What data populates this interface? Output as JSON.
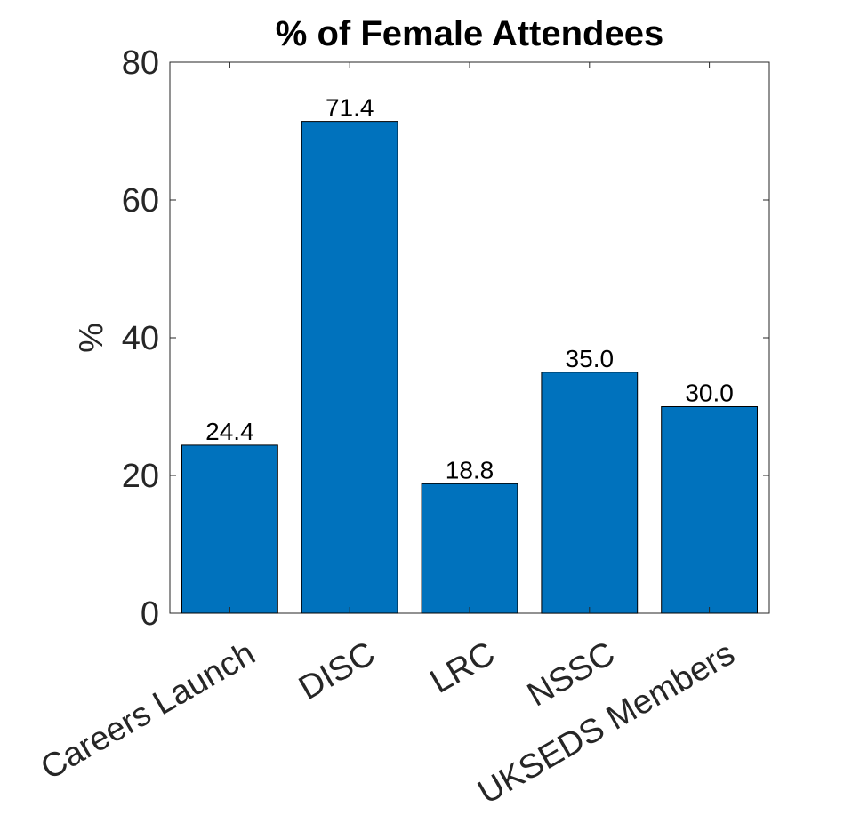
{
  "chart_data": {
    "type": "bar",
    "title": "% of Female Attendees",
    "xlabel": "",
    "ylabel": "%",
    "categories": [
      "Careers Launch",
      "DISC",
      "LRC",
      "NSSC",
      "UKSEDS Members"
    ],
    "values": [
      24.4,
      71.4,
      18.8,
      35.0,
      30.0
    ],
    "data_labels": [
      "24.4",
      "71.4",
      "18.8",
      "35.0",
      "30.0"
    ],
    "ylim": [
      0,
      80
    ],
    "yticks": [
      0,
      20,
      40,
      60,
      80
    ],
    "ytick_labels": [
      "0",
      "20",
      "40",
      "60",
      "80"
    ],
    "bar_color": "#0072BD",
    "grid": false,
    "legend": "none"
  }
}
